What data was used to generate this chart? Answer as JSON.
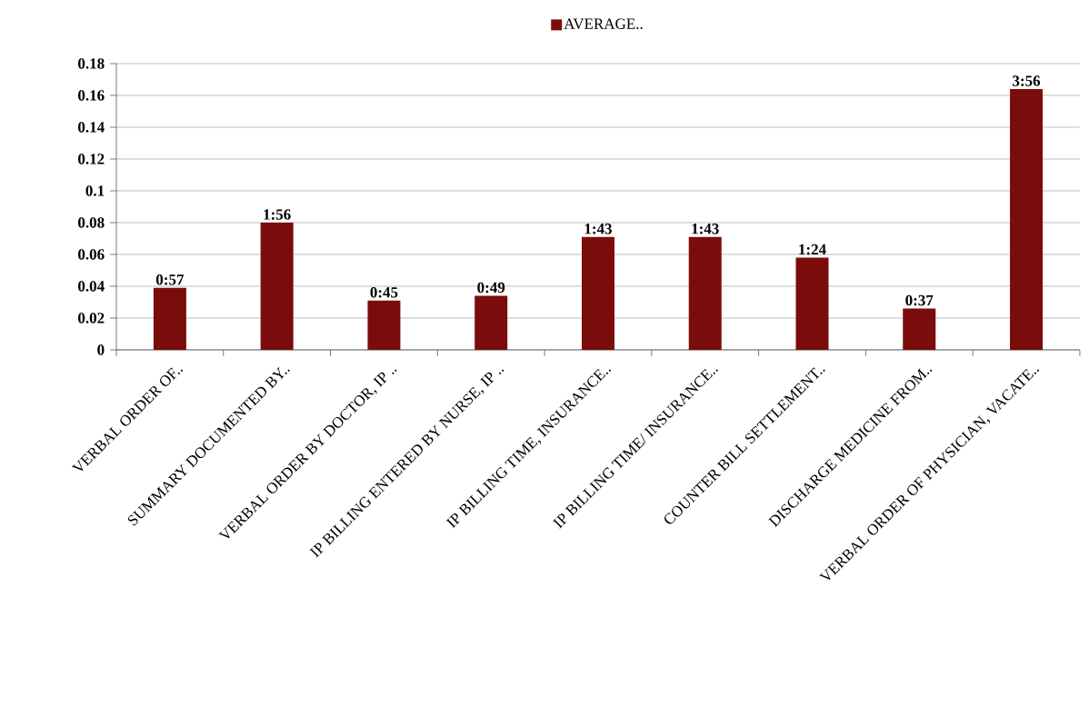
{
  "chart_data": {
    "type": "bar",
    "categories": [
      "VERBAL ORDER OF..",
      "SUMMARY DOCUMENTED BY..",
      "VERBAL ORDER BY DOCTOR,  IP ..",
      "IP BILLING ENTERED BY NURSE, IP ..",
      "IP BILLING TIME, INSURANCE..",
      "IP BILLING TIME/ INSURANCE..",
      "COUNTER BILL SETTLEMENT..",
      "DISCHARGE MEDICINE FROM..",
      "VERBAL ORDER OF PHYSICIAN, VACATE.."
    ],
    "series": [
      {
        "name": "AVERAGE..",
        "color": "#7b0c0c",
        "values": [
          0.039,
          0.08,
          0.031,
          0.034,
          0.071,
          0.071,
          0.058,
          0.026,
          0.164
        ]
      }
    ],
    "annotations": [
      {
        "text": "0:57",
        "x": "VERBAL ORDER OF..",
        "y": 0.039
      },
      {
        "text": "1:56",
        "x": "SUMMARY DOCUMENTED BY..",
        "y": 0.08
      },
      {
        "text": "0:45",
        "x": "VERBAL ORDER BY DOCTOR,  IP ..",
        "y": 0.031
      },
      {
        "text": "0:49",
        "x": "IP BILLING ENTERED BY NURSE, IP ..",
        "y": 0.034
      },
      {
        "text": "1:43",
        "x": "IP BILLING TIME, INSURANCE..",
        "y": 0.071
      },
      {
        "text": "1:43",
        "x": "IP BILLING TIME/ INSURANCE..",
        "y": 0.071
      },
      {
        "text": "1:24",
        "x": "COUNTER BILL SETTLEMENT..",
        "y": 0.058
      },
      {
        "text": "0:37",
        "x": "DISCHARGE MEDICINE FROM..",
        "y": 0.026
      },
      {
        "text": "3:56",
        "x": "VERBAL ORDER OF PHYSICIAN, VACATE..",
        "y": 0.164
      }
    ],
    "ylim": [
      0,
      0.18
    ],
    "yticks": [
      0,
      0.02,
      0.04,
      0.06,
      0.08,
      0.1,
      0.12,
      0.14,
      0.16,
      0.18
    ],
    "grid": "y",
    "legend": "top"
  }
}
